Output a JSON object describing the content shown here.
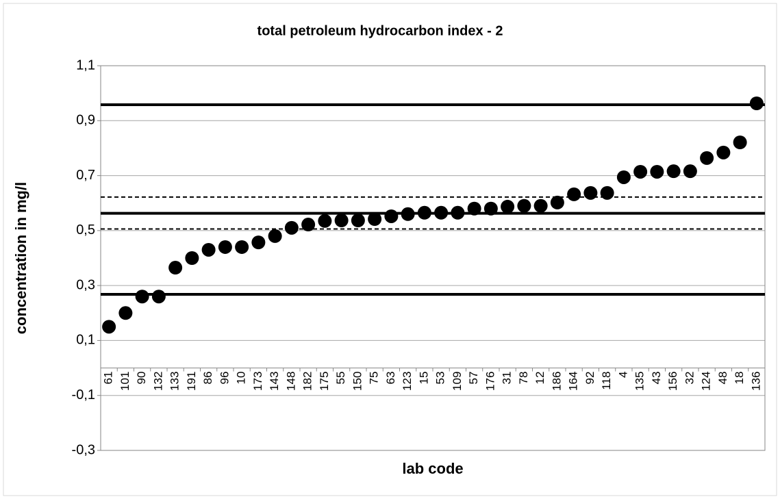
{
  "chart_data": {
    "type": "scatter",
    "title": "total petroleum hydrocarbon index - 2",
    "x_label": "lab code",
    "y_label": "concentration in mg/l",
    "categories": [
      "61",
      "101",
      "90",
      "132",
      "133",
      "191",
      "86",
      "96",
      "10",
      "173",
      "143",
      "148",
      "182",
      "175",
      "55",
      "150",
      "75",
      "63",
      "123",
      "15",
      "53",
      "109",
      "57",
      "176",
      "31",
      "78",
      "12",
      "186",
      "164",
      "92",
      "118",
      "4",
      "135",
      "43",
      "156",
      "32",
      "124",
      "48",
      "18",
      "136"
    ],
    "values": [
      0.15,
      0.2,
      0.26,
      0.26,
      0.365,
      0.4,
      0.43,
      0.44,
      0.44,
      0.457,
      0.48,
      0.51,
      0.522,
      0.535,
      0.537,
      0.537,
      0.542,
      0.552,
      0.56,
      0.565,
      0.565,
      0.565,
      0.58,
      0.58,
      0.587,
      0.59,
      0.59,
      0.602,
      0.632,
      0.637,
      0.637,
      0.694,
      0.714,
      0.714,
      0.716,
      0.716,
      0.764,
      0.784,
      0.821,
      0.963
    ],
    "color": "#000000",
    "reference_lines": [
      {
        "value": 0.958,
        "style": "solid"
      },
      {
        "value": 0.622,
        "style": "dashed"
      },
      {
        "value": 0.563,
        "style": "solid"
      },
      {
        "value": 0.506,
        "style": "dashed"
      },
      {
        "value": 0.268,
        "style": "solid"
      }
    ],
    "ylim": [
      -0.3,
      1.1
    ],
    "yticks": [
      {
        "value": -0.3,
        "label": "-0,3"
      },
      {
        "value": -0.1,
        "label": "-0,1"
      },
      {
        "value": 0.1,
        "label": "0,1"
      },
      {
        "value": 0.3,
        "label": "0,3"
      },
      {
        "value": 0.5,
        "label": "0,5"
      },
      {
        "value": 0.7,
        "label": "0,7"
      },
      {
        "value": 0.9,
        "label": "0,9"
      },
      {
        "value": 1.1,
        "label": "1,1"
      }
    ],
    "grid": true
  }
}
